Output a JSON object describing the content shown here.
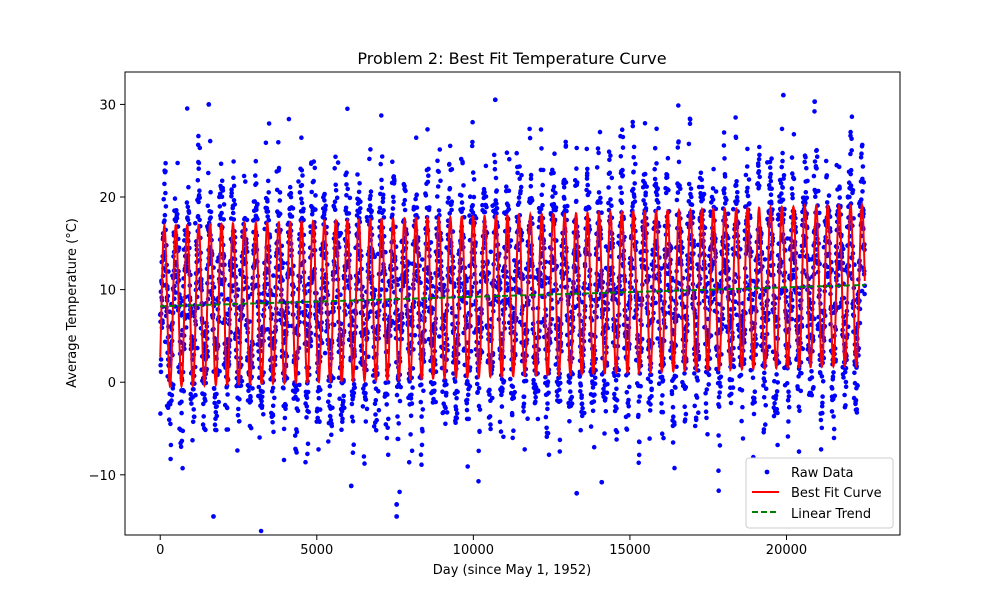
{
  "chart_data": {
    "type": "scatter",
    "title": "Problem 2: Best Fit Temperature Curve",
    "xlabel": "Day (since May 1, 1952)",
    "ylabel": "Average Temperature (°C)",
    "xlim": [
      -1125,
      23625
    ],
    "ylim": [
      -16.5,
      33.5
    ],
    "xticks": [
      0,
      5000,
      10000,
      15000,
      20000
    ],
    "xtick_labels": [
      "0",
      "5000",
      "10000",
      "15000",
      "20000"
    ],
    "yticks": [
      -10,
      0,
      10,
      20,
      30
    ],
    "ytick_labels": [
      "−10",
      "0",
      "10",
      "20",
      "30"
    ],
    "grid": false,
    "legend_position": "lower right",
    "series": [
      {
        "name": "Raw Data",
        "kind": "scatter",
        "color": "#0000ff",
        "x_range": [
          0,
          22500
        ],
        "description_values": {
          "seasonal_mean_start": 8.0,
          "seasonal_mean_end": 10.5,
          "typical_max": 24.0,
          "typical_min": -2.5
        },
        "notable_points": [
          {
            "x": 1550,
            "y": 30.0
          },
          {
            "x": 10700,
            "y": 30.5
          },
          {
            "x": 19900,
            "y": 31.0
          },
          {
            "x": 20900,
            "y": 30.3
          },
          {
            "x": 1700,
            "y": -14.5
          },
          {
            "x": 7550,
            "y": -14.5
          },
          {
            "x": 7550,
            "y": -13.2
          },
          {
            "x": 13300,
            "y": -12.0
          },
          {
            "x": 6100,
            "y": -11.2
          },
          {
            "x": 14100,
            "y": -10.8
          }
        ]
      },
      {
        "name": "Best Fit Curve",
        "kind": "line",
        "color": "#ff0000",
        "period_days": 365.25,
        "x_range": [
          0,
          22500
        ],
        "amplitude_start": 8.7,
        "amplitude_end": 8.7,
        "peak_start": 16.5,
        "peak_end": 19.5,
        "trough_start": -1.0,
        "trough_end": 2.0
      },
      {
        "name": "Linear Trend",
        "kind": "dashed-line",
        "color": "#008000",
        "x": [
          0,
          22500
        ],
        "y": [
          8.2,
          10.5
        ]
      }
    ]
  }
}
